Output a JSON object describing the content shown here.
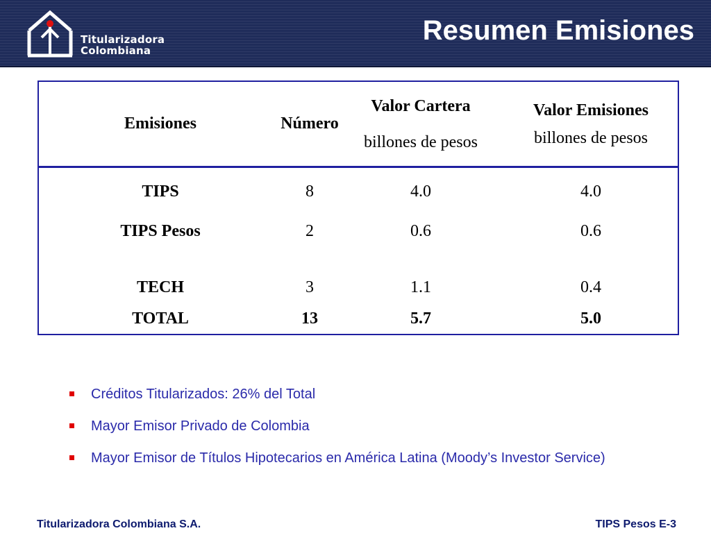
{
  "header": {
    "logo_line1": "Titularizadora",
    "logo_line2": "Colombiana",
    "title": "Resumen Emisiones",
    "icon": "house-arrow-logo-icon"
  },
  "table": {
    "headers": {
      "emisiones": "Emisiones",
      "numero": "Número",
      "valor_cartera": "Valor Cartera",
      "valor_cartera_unit": "billones de pesos",
      "valor_emisiones": "Valor Emisiones",
      "valor_emisiones_unit": "billones de pesos"
    },
    "rows": [
      {
        "name": "TIPS",
        "numero": "8",
        "cartera": "4.0",
        "emisiones": "4.0"
      },
      {
        "name": "TIPS Pesos",
        "numero": "2",
        "cartera": "0.6",
        "emisiones": "0.6"
      },
      {
        "name": "TECH",
        "numero": "3",
        "cartera": "1.1",
        "emisiones": "0.4"
      }
    ],
    "total": {
      "name": "TOTAL",
      "numero": "13",
      "cartera": "5.7",
      "emisiones": "5.0"
    },
    "border_color": "#1f1fa0"
  },
  "bullets": [
    "Créditos Titularizados:   26% del Total",
    "Mayor Emisor Privado de Colombia",
    "Mayor Emisor de Títulos Hipotecarios en América Latina (Moody’s Investor Service)"
  ],
  "footer": {
    "left": "Titularizadora Colombiana S.A.",
    "right": "TIPS Pesos E-3"
  },
  "colors": {
    "header_bg": "#1f2c5a",
    "bullet_text": "#2a2aaa",
    "bullet_mark": "#e00000",
    "footer_text": "#0d1a6e"
  }
}
